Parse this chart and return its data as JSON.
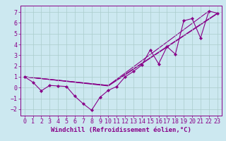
{
  "xlabel": "Windchill (Refroidissement éolien,°C)",
  "bg_color": "#cce8f0",
  "grid_color": "#aacccc",
  "line_color": "#880088",
  "xlim": [
    -0.5,
    23.5
  ],
  "ylim": [
    -2.6,
    7.6
  ],
  "xticks": [
    0,
    1,
    2,
    3,
    4,
    5,
    6,
    7,
    8,
    9,
    10,
    11,
    12,
    13,
    14,
    15,
    16,
    17,
    18,
    19,
    20,
    21,
    22,
    23
  ],
  "yticks": [
    -2,
    -1,
    0,
    1,
    2,
    3,
    4,
    5,
    6,
    7
  ],
  "series1_x": [
    0,
    1,
    2,
    3,
    4,
    5,
    6,
    7,
    8,
    9,
    10,
    11,
    12,
    13,
    14,
    15,
    16,
    17,
    18,
    19,
    20,
    21,
    22,
    23
  ],
  "series1_y": [
    1.0,
    0.5,
    -0.3,
    0.2,
    0.15,
    0.1,
    -0.8,
    -1.5,
    -2.1,
    -0.9,
    -0.25,
    0.1,
    1.0,
    1.5,
    2.1,
    3.5,
    2.2,
    3.8,
    3.1,
    6.2,
    6.4,
    4.6,
    7.1,
    6.9
  ],
  "line2_x": [
    0,
    10,
    23
  ],
  "line2_y": [
    1.0,
    0.2,
    6.9
  ],
  "line3_x": [
    0,
    10,
    22
  ],
  "line3_y": [
    1.0,
    0.2,
    7.1
  ],
  "line4_x": [
    0,
    10,
    23
  ],
  "line4_y": [
    1.0,
    0.15,
    6.85
  ],
  "xlabel_fontsize": 6.5,
  "tick_fontsize": 6.0
}
